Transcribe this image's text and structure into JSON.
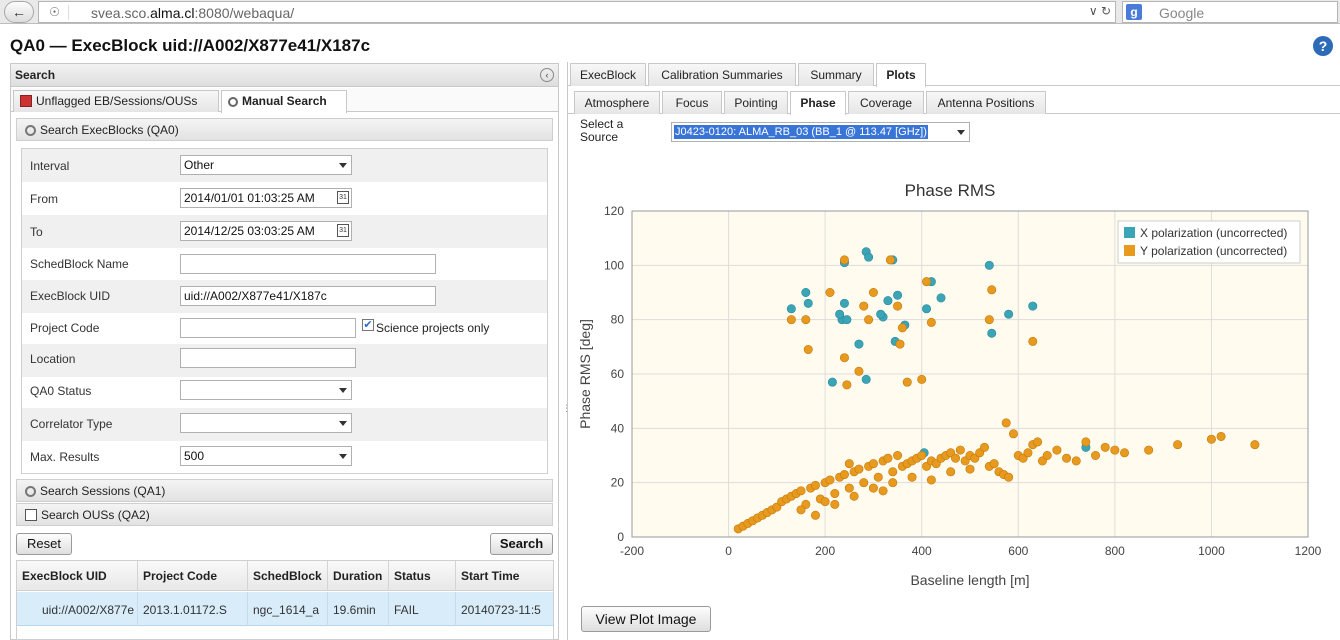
{
  "browser": {
    "url_prefix": "svea.sco.",
    "url_host": "alma.cl",
    "url_suffix": ":8080/webaqua/",
    "search_placeholder": "Google"
  },
  "app": {
    "title": "QA0 — ExecBlock uid://A002/X877e41/X187c",
    "help": "?"
  },
  "left": {
    "header": "Search",
    "tabs": [
      {
        "label": "Unflagged EB/Sessions/OUSs"
      },
      {
        "label": "Manual Search"
      }
    ],
    "section_qa0": "Search ExecBlocks (QA0)",
    "fields": {
      "interval": {
        "label": "Interval",
        "value": "Other"
      },
      "from": {
        "label": "From",
        "value": "2014/01/01 01:03:25 AM"
      },
      "to": {
        "label": "To",
        "value": "2014/12/25 03:03:25 AM"
      },
      "schedblock": {
        "label": "SchedBlock Name",
        "value": ""
      },
      "execblock_uid": {
        "label": "ExecBlock UID",
        "value": "uid://A002/X877e41/X187c"
      },
      "project_code": {
        "label": "Project Code",
        "value": ""
      },
      "science_only": {
        "label": "Science projects only",
        "checked": true
      },
      "location": {
        "label": "Location",
        "value": ""
      },
      "qa0_status": {
        "label": "QA0 Status",
        "value": ""
      },
      "correlator": {
        "label": "Correlator Type",
        "value": ""
      },
      "max_results": {
        "label": "Max. Results",
        "value": "500"
      }
    },
    "section_qa1": "Search Sessions (QA1)",
    "section_qa2": "Search OUSs (QA2)",
    "reset_label": "Reset",
    "search_label": "Search",
    "grid": {
      "headers": [
        "ExecBlock UID",
        "Project Code",
        "SchedBlock",
        "Duration",
        "Status",
        "Start Time"
      ],
      "rows": [
        [
          "uid://A002/X877e",
          "2013.1.01172.S",
          "ngc_1614_a",
          "19.6min",
          "FAIL",
          "20140723-11:5"
        ]
      ]
    }
  },
  "right": {
    "top_tabs": [
      "ExecBlock",
      "Calibration Summaries",
      "Summary",
      "Plots"
    ],
    "sub_tabs": [
      "Atmosphere",
      "Focus",
      "Pointing",
      "Phase",
      "Coverage",
      "Antenna Positions"
    ],
    "source_label_1": "Select a",
    "source_label_2": "Source",
    "source_value": "J0423-0120: ALMA_RB_03 (BB_1 @ 113.47 [GHz])",
    "view_plot_label": "View Plot Image"
  },
  "chart_data": {
    "type": "scatter",
    "title": "Phase RMS",
    "xlabel": "Baseline length [m]",
    "ylabel": "Phase RMS [deg]",
    "xlim": [
      -200,
      1200
    ],
    "ylim": [
      0,
      120
    ],
    "xticks": [
      -200,
      0,
      200,
      400,
      600,
      800,
      1000,
      1200
    ],
    "yticks": [
      0,
      20,
      40,
      60,
      80,
      100,
      120
    ],
    "grid": true,
    "legend_position": "top-right",
    "colors": {
      "x": "#3ba5b8",
      "y": "#e89a1f",
      "plot_bg": "#fffbee"
    },
    "series": [
      {
        "name": "X polarization (uncorrected)",
        "points": [
          [
            160,
            90
          ],
          [
            165,
            86
          ],
          [
            130,
            84
          ],
          [
            240,
            86
          ],
          [
            235,
            80
          ],
          [
            245,
            80
          ],
          [
            240,
            101
          ],
          [
            285,
            105
          ],
          [
            290,
            103
          ],
          [
            320,
            81
          ],
          [
            330,
            87
          ],
          [
            350,
            89
          ],
          [
            345,
            72
          ],
          [
            365,
            78
          ],
          [
            340,
            102
          ],
          [
            410,
            84
          ],
          [
            420,
            94
          ],
          [
            440,
            88
          ],
          [
            540,
            100
          ],
          [
            545,
            75
          ],
          [
            580,
            82
          ],
          [
            630,
            85
          ],
          [
            215,
            57
          ],
          [
            285,
            58
          ],
          [
            270,
            71
          ],
          [
            230,
            82
          ],
          [
            315,
            82
          ],
          [
            405,
            31
          ],
          [
            740,
            33
          ]
        ]
      },
      {
        "name": "Y polarization (uncorrected)",
        "points": [
          [
            130,
            80
          ],
          [
            160,
            80
          ],
          [
            165,
            69
          ],
          [
            210,
            90
          ],
          [
            240,
            66
          ],
          [
            245,
            56
          ],
          [
            270,
            61
          ],
          [
            280,
            85
          ],
          [
            290,
            80
          ],
          [
            300,
            90
          ],
          [
            335,
            102
          ],
          [
            350,
            85
          ],
          [
            355,
            71
          ],
          [
            360,
            77
          ],
          [
            370,
            57
          ],
          [
            400,
            58
          ],
          [
            410,
            94
          ],
          [
            420,
            79
          ],
          [
            540,
            80
          ],
          [
            545,
            91
          ],
          [
            630,
            72
          ],
          [
            240,
            102
          ],
          [
            20,
            3
          ],
          [
            30,
            4
          ],
          [
            40,
            5
          ],
          [
            50,
            6
          ],
          [
            60,
            7
          ],
          [
            70,
            8
          ],
          [
            80,
            9
          ],
          [
            90,
            10
          ],
          [
            100,
            11
          ],
          [
            110,
            13
          ],
          [
            120,
            14
          ],
          [
            130,
            15
          ],
          [
            140,
            16
          ],
          [
            150,
            17
          ],
          [
            160,
            12
          ],
          [
            170,
            18
          ],
          [
            180,
            19
          ],
          [
            190,
            14
          ],
          [
            200,
            20
          ],
          [
            210,
            21
          ],
          [
            220,
            16
          ],
          [
            230,
            22
          ],
          [
            240,
            23
          ],
          [
            250,
            18
          ],
          [
            260,
            24
          ],
          [
            270,
            25
          ],
          [
            280,
            20
          ],
          [
            290,
            26
          ],
          [
            300,
            27
          ],
          [
            310,
            22
          ],
          [
            320,
            28
          ],
          [
            330,
            29
          ],
          [
            340,
            24
          ],
          [
            350,
            30
          ],
          [
            360,
            26
          ],
          [
            370,
            27
          ],
          [
            380,
            28
          ],
          [
            390,
            29
          ],
          [
            400,
            30
          ],
          [
            410,
            26
          ],
          [
            420,
            28
          ],
          [
            430,
            27
          ],
          [
            440,
            29
          ],
          [
            450,
            30
          ],
          [
            460,
            31
          ],
          [
            470,
            29
          ],
          [
            480,
            32
          ],
          [
            490,
            28
          ],
          [
            500,
            30
          ],
          [
            510,
            29
          ],
          [
            520,
            31
          ],
          [
            530,
            33
          ],
          [
            540,
            26
          ],
          [
            550,
            27
          ],
          [
            560,
            24
          ],
          [
            570,
            23
          ],
          [
            575,
            42
          ],
          [
            580,
            22
          ],
          [
            590,
            38
          ],
          [
            600,
            30
          ],
          [
            610,
            29
          ],
          [
            620,
            31
          ],
          [
            630,
            34
          ],
          [
            640,
            35
          ],
          [
            650,
            28
          ],
          [
            660,
            30
          ],
          [
            680,
            32
          ],
          [
            700,
            29
          ],
          [
            720,
            28
          ],
          [
            740,
            35
          ],
          [
            760,
            30
          ],
          [
            780,
            33
          ],
          [
            800,
            32
          ],
          [
            820,
            31
          ],
          [
            870,
            32
          ],
          [
            930,
            34
          ],
          [
            1000,
            36
          ],
          [
            1020,
            37
          ],
          [
            1090,
            34
          ],
          [
            150,
            10
          ],
          [
            180,
            8
          ],
          [
            220,
            12
          ],
          [
            260,
            15
          ],
          [
            300,
            18
          ],
          [
            340,
            20
          ],
          [
            380,
            22
          ],
          [
            420,
            21
          ],
          [
            460,
            24
          ],
          [
            500,
            25
          ],
          [
            250,
            27
          ],
          [
            320,
            17
          ],
          [
            200,
            13
          ]
        ]
      }
    ]
  }
}
